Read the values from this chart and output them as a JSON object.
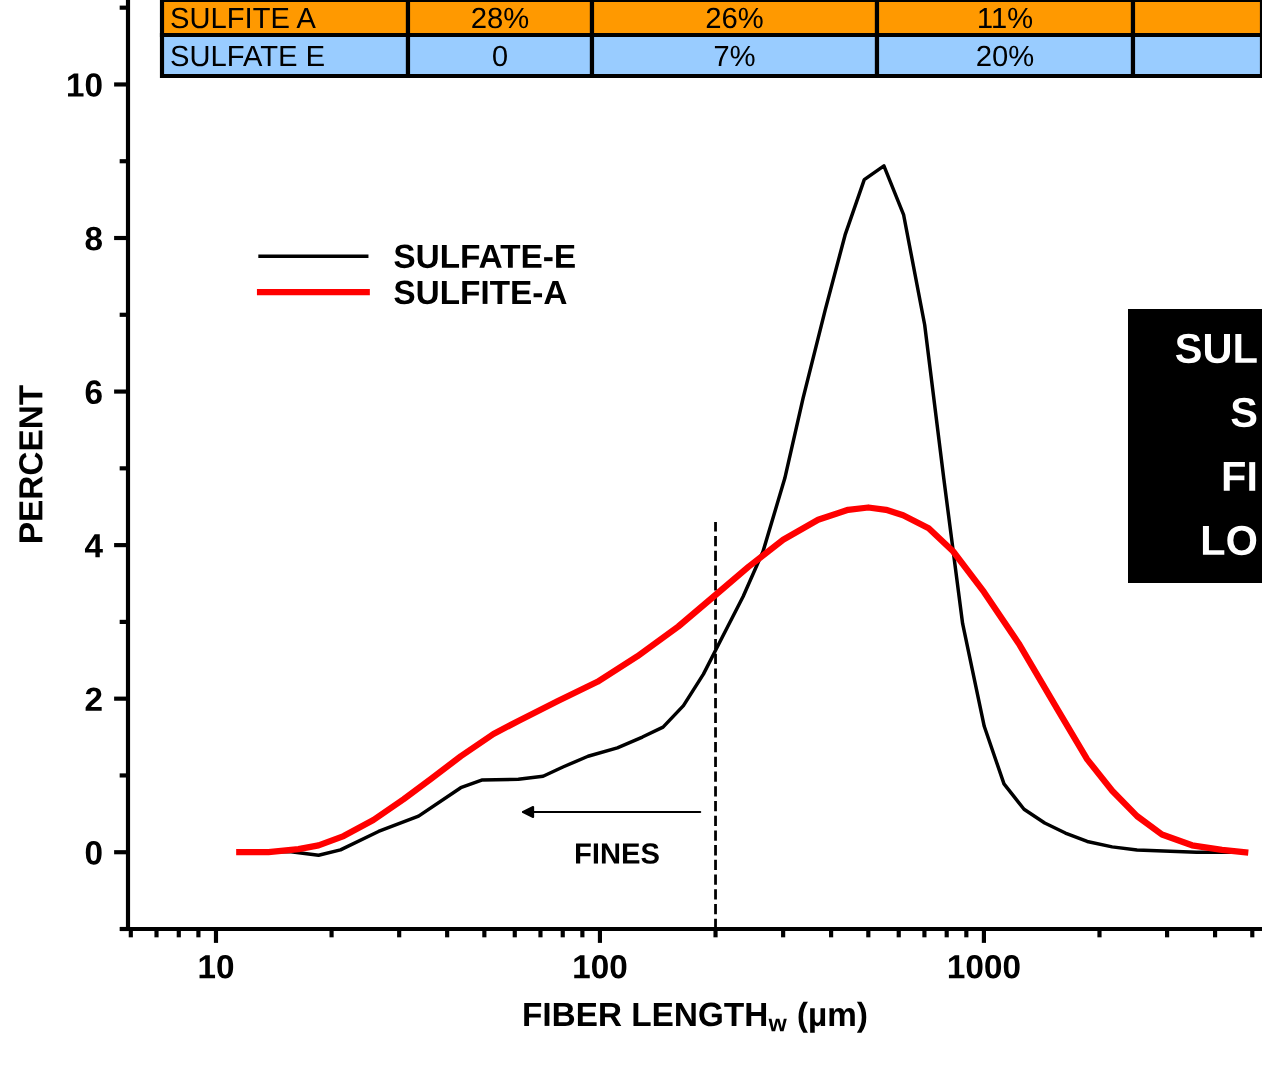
{
  "chart_data": {
    "type": "line",
    "xlabel": "FIBER LENGTH$_{w}$ (µm)",
    "ylabel": "PERCENT",
    "log": "x",
    "xlim": [
      5.9,
      5300
    ],
    "xticks": [
      10,
      100,
      1000
    ],
    "ylim": [
      -1,
      11.1
    ],
    "yticks": [
      0,
      2,
      4,
      6,
      8,
      10
    ],
    "grid": false,
    "legend": "top left",
    "line_style": "solid",
    "marker": "none",
    "ref_lines": [
      {
        "axis": "x",
        "value": 200,
        "label": null,
        "color": "#000000",
        "line_style": "dashed"
      }
    ],
    "annotations": [
      "SULFITE A",
      "28%",
      "26%",
      "11%",
      "SULFATE E",
      "0",
      "7%",
      "20%",
      "FINES",
      "SUL",
      "S",
      "FI",
      "LO"
    ],
    "series": [
      {
        "name": "SULFATE-E",
        "color": "#000000",
        "x": [
          11.5,
          12.9,
          15.5,
          18.5,
          21.1,
          26.5,
          33.7,
          43.4,
          49.2,
          61.3,
          71.1,
          80.1,
          93.1,
          111,
          129,
          146,
          165,
          186,
          201,
          236,
          266,
          303,
          338,
          386,
          435,
          488,
          549,
          618,
          701,
          786,
          880,
          1002,
          1128,
          1272,
          1440,
          1630,
          1858,
          2158,
          2505,
          3580,
          4680
        ],
        "values": [
          0,
          0,
          0.01,
          -0.04,
          0.03,
          0.27,
          0.47,
          0.84,
          0.94,
          0.95,
          0.99,
          1.11,
          1.25,
          1.36,
          1.5,
          1.63,
          1.91,
          2.32,
          2.65,
          3.33,
          3.92,
          4.87,
          5.91,
          7.06,
          8.04,
          8.76,
          8.94,
          8.3,
          6.87,
          4.87,
          2.98,
          1.64,
          0.89,
          0.56,
          0.38,
          0.25,
          0.14,
          0.07,
          0.03,
          0,
          0
        ]
      },
      {
        "name": "SULFITE-A",
        "color": "#ff0000",
        "x": [
          11.5,
          13.7,
          16.4,
          18.5,
          21.5,
          25.7,
          30.8,
          36.2,
          43.4,
          52.8,
          61.3,
          77.7,
          98.5,
          125,
          160,
          201,
          244,
          300,
          370,
          443,
          500,
          556,
          616,
          718,
          831,
          1000,
          1232,
          1563,
          1858,
          2158,
          2505,
          2909,
          3483,
          4169,
          4792
        ],
        "values": [
          0,
          0,
          0.04,
          0.09,
          0.21,
          0.42,
          0.69,
          0.95,
          1.25,
          1.54,
          1.71,
          1.97,
          2.22,
          2.55,
          2.94,
          3.36,
          3.72,
          4.07,
          4.33,
          4.46,
          4.49,
          4.46,
          4.39,
          4.22,
          3.92,
          3.39,
          2.72,
          1.84,
          1.21,
          0.8,
          0.47,
          0.23,
          0.09,
          0.03,
          0
        ]
      }
    ]
  }
}
